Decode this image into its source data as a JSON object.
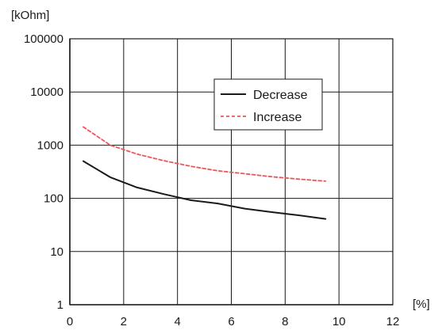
{
  "chart_data": {
    "type": "line",
    "title": "",
    "y_unit": "[kOhm]",
    "x_unit": "[%]",
    "y_scale": "log",
    "xlim": [
      0,
      12
    ],
    "ylim": [
      1,
      100000
    ],
    "x_ticks": [
      "0",
      "2",
      "4",
      "6",
      "8",
      "10",
      "12"
    ],
    "y_ticks": [
      "1",
      "10",
      "100",
      "1000",
      "10000",
      "100000"
    ],
    "grid": true,
    "legend_position": "top-right",
    "series": [
      {
        "name": "Decrease",
        "style": "solid",
        "color": "#1a1a1a",
        "x": [
          0.5,
          1.5,
          2.5,
          3.5,
          4.5,
          5.5,
          6.5,
          7.5,
          8.5,
          9.5
        ],
        "y": [
          500,
          250,
          160,
          120,
          92,
          80,
          64,
          55,
          48,
          41
        ]
      },
      {
        "name": "Increase",
        "style": "dashed",
        "color": "#e8585a",
        "x": [
          0.5,
          1.5,
          2.5,
          3.5,
          4.5,
          5.5,
          6.5,
          7.5,
          8.5,
          9.5
        ],
        "y": [
          2200,
          1000,
          680,
          510,
          400,
          330,
          290,
          255,
          230,
          210
        ]
      }
    ]
  }
}
